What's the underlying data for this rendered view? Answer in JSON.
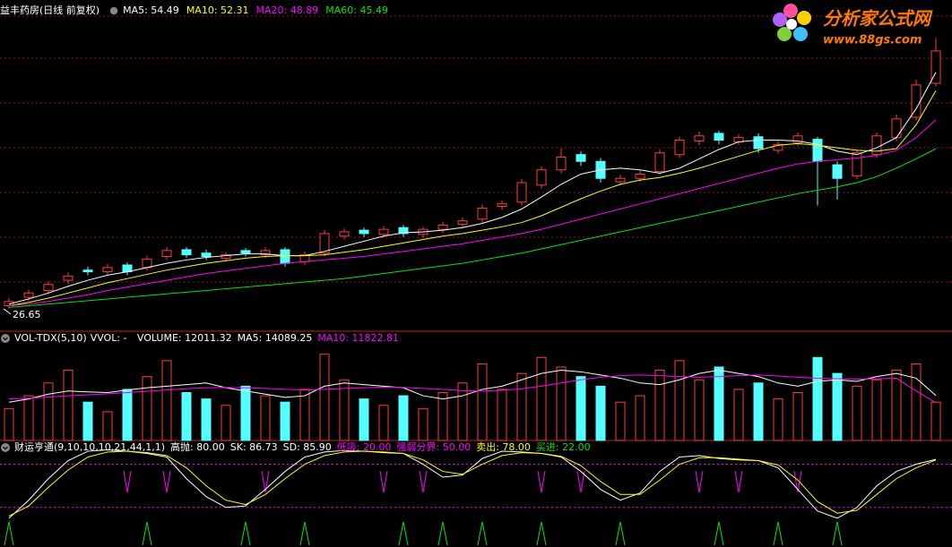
{
  "chart_data": [
    {
      "type": "candlestick",
      "title": "益丰药房(日线 前复权)",
      "up_color": "#ff3c3c",
      "down_color": "#54ffff",
      "ylim": [
        24,
        63
      ],
      "open": [
        27.0,
        28.0,
        28.8,
        30.0,
        31.2,
        31.0,
        31.8,
        31.5,
        32.8,
        33.6,
        33.2,
        32.6,
        33.5,
        33.0,
        33.6,
        32.2,
        33.2,
        35.2,
        35.9,
        35.4,
        36.2,
        35.4,
        36.0,
        36.6,
        37.2,
        38.7,
        39.2,
        41.2,
        43.0,
        44.8,
        44.0,
        41.6,
        42.0,
        42.8,
        44.8,
        46.4,
        47.3,
        46.3,
        46.9,
        45.3,
        46.2,
        46.6,
        43.6,
        42.3,
        44.8,
        46.8,
        49.2,
        53.2
      ],
      "high": [
        27.9,
        28.9,
        29.9,
        30.9,
        31.6,
        31.9,
        32.1,
        32.9,
        33.9,
        33.9,
        33.6,
        33.3,
        33.8,
        33.9,
        33.9,
        33.4,
        35.9,
        36.1,
        36.2,
        36.4,
        36.5,
        36.3,
        36.9,
        37.4,
        38.9,
        39.4,
        41.9,
        43.4,
        45.5,
        45.2,
        44.4,
        42.4,
        42.9,
        45.4,
        46.9,
        47.5,
        47.6,
        47.2,
        47.3,
        46.4,
        47.4,
        46.9,
        44.0,
        45.4,
        47.4,
        49.5,
        53.6,
        58.5
      ],
      "low": [
        26.65,
        27.6,
        28.4,
        29.6,
        30.6,
        30.6,
        30.6,
        31.1,
        32.4,
        32.6,
        32.4,
        32.2,
        32.8,
        32.6,
        31.6,
        31.8,
        32.8,
        34.8,
        35.1,
        35.0,
        35.1,
        35.0,
        35.6,
        36.2,
        36.8,
        38.3,
        38.8,
        40.8,
        42.6,
        43.5,
        41.5,
        41.2,
        41.6,
        42.4,
        44.4,
        45.9,
        46.0,
        45.9,
        45.0,
        44.9,
        45.8,
        38.8,
        39.5,
        41.9,
        44.4,
        46.4,
        48.8,
        52.8
      ],
      "close": [
        27.5,
        28.5,
        29.5,
        30.5,
        31.0,
        31.5,
        31.0,
        32.5,
        33.5,
        33.0,
        32.8,
        33.0,
        33.2,
        33.5,
        32.0,
        33.0,
        35.5,
        35.7,
        35.5,
        36.0,
        35.5,
        36.0,
        36.5,
        37.0,
        38.5,
        39.0,
        41.5,
        43.0,
        44.5,
        44.0,
        42.0,
        42.0,
        42.5,
        45.0,
        46.5,
        47.0,
        46.5,
        46.8,
        45.5,
        46.0,
        47.0,
        44.0,
        42.0,
        45.0,
        47.0,
        49.0,
        53.0,
        57.0
      ],
      "low_label": 26.65,
      "series": [
        {
          "name": "MA5: 54.49",
          "color": "#ffffff",
          "values": [
            27.2,
            27.8,
            28.5,
            29.3,
            30,
            30.6,
            31,
            31.5,
            32,
            32.4,
            32.7,
            32.9,
            33.1,
            33.1,
            32.9,
            32.9,
            33.4,
            34,
            34.6,
            35.2,
            35.6,
            35.7,
            35.9,
            36.2,
            36.7,
            37.4,
            38.4,
            39.8,
            41.3,
            42.5,
            43,
            43.2,
            43,
            42.6,
            43.2,
            44.3,
            45.4,
            46.3,
            46.5,
            46.5,
            46.4,
            46,
            45.2,
            44.8,
            45.6,
            46.8,
            50.2,
            54.49
          ]
        },
        {
          "name": "MA10: 52.31",
          "color": "#ffff00",
          "values": [
            27,
            27.4,
            27.9,
            28.5,
            29.1,
            29.7,
            30.2,
            30.7,
            31.2,
            31.6,
            32,
            32.3,
            32.6,
            32.8,
            32.9,
            32.9,
            33,
            33.3,
            33.6,
            34,
            34.4,
            34.8,
            35.2,
            35.5,
            35.9,
            36.3,
            36.8,
            37.6,
            38.6,
            39.6,
            40.5,
            41.3,
            41.8,
            42.1,
            42.6,
            43.2,
            43.9,
            44.6,
            45.3,
            45.9,
            46.1,
            45.9,
            45.6,
            45.3,
            45.2,
            45.5,
            48.3,
            52.31
          ]
        },
        {
          "name": "MA20: 48.89",
          "color": "#ff00ff",
          "values": [
            27,
            27.2,
            27.5,
            27.9,
            28.3,
            28.8,
            29.2,
            29.6,
            30,
            30.4,
            30.8,
            31.1,
            31.4,
            31.7,
            32,
            32.2,
            32.4,
            32.6,
            32.8,
            33.1,
            33.4,
            33.7,
            34,
            34.3,
            34.7,
            35.1,
            35.5,
            36,
            36.6,
            37.2,
            37.8,
            38.4,
            39,
            39.6,
            40.2,
            40.8,
            41.4,
            42,
            42.6,
            43.2,
            43.7,
            44,
            44.2,
            44.4,
            44.7,
            45.3,
            46.8,
            48.89
          ]
        },
        {
          "name": "MA60: 45.49",
          "color": "#00e600",
          "values": [
            26.8,
            27,
            27.2,
            27.4,
            27.6,
            27.8,
            28,
            28.2,
            28.4,
            28.6,
            28.8,
            29,
            29.2,
            29.4,
            29.6,
            29.8,
            30,
            30.2,
            30.5,
            30.8,
            31.1,
            31.4,
            31.7,
            32,
            32.4,
            32.8,
            33.2,
            33.7,
            34.2,
            34.7,
            35.2,
            35.7,
            36.2,
            36.7,
            37.2,
            37.7,
            38.2,
            38.7,
            39.2,
            39.7,
            40.2,
            40.6,
            41,
            41.5,
            42.2,
            43.2,
            44.3,
            45.49
          ]
        }
      ]
    },
    {
      "type": "volume",
      "title": "VOL-TDX(5,10)",
      "subtitle": "VVOL: -",
      "volume_label": "VOLUME: 12011.32",
      "ylim": [
        0,
        30000
      ],
      "values": [
        10000,
        14000,
        18000,
        22000,
        12000,
        9000,
        16000,
        20000,
        25000,
        15000,
        13000,
        11000,
        17000,
        14000,
        12000,
        16000,
        27000,
        19000,
        13000,
        11000,
        14000,
        10000,
        15000,
        18000,
        24000,
        16000,
        21000,
        26000,
        23000,
        20000,
        17000,
        12000,
        14000,
        22000,
        25000,
        19000,
        23000,
        16000,
        18000,
        13000,
        15000,
        26000,
        21000,
        17000,
        19000,
        22000,
        24000,
        12011.32
      ],
      "series": [
        {
          "name": "MA5: 14089.25",
          "color": "#ffffff",
          "values": [
            12000,
            13000,
            14500,
            15500,
            15200,
            15000,
            15800,
            16500,
            17000,
            17500,
            18000,
            16500,
            15500,
            14500,
            13500,
            14000,
            17000,
            18000,
            17500,
            17000,
            16500,
            14000,
            13000,
            14000,
            16000,
            17000,
            19000,
            21000,
            22000,
            21500,
            20500,
            19500,
            18000,
            17500,
            19000,
            21000,
            22000,
            21000,
            20000,
            18000,
            17000,
            18500,
            19000,
            18500,
            20000,
            21000,
            19500,
            14089.25
          ]
        },
        {
          "name": "MA10: 11822.81",
          "color": "#ff00ff",
          "values": [
            13000,
            13200,
            13600,
            14000,
            14300,
            14600,
            15000,
            15400,
            15800,
            16200,
            16500,
            16600,
            16500,
            16300,
            16000,
            15800,
            16000,
            16300,
            16500,
            16700,
            16600,
            16300,
            16000,
            15600,
            15500,
            15700,
            16200,
            17000,
            18000,
            19000,
            19800,
            20300,
            20500,
            20300,
            20000,
            19800,
            20000,
            20300,
            20500,
            20200,
            19800,
            19500,
            19300,
            19200,
            19300,
            19500,
            15500,
            11822.81
          ]
        }
      ]
    },
    {
      "type": "oscillator",
      "title": "财运亨通(9,10,10,10,21,44,1,1)",
      "ylim": [
        -35,
        113
      ],
      "legend": [
        {
          "label": "高抛: 80.00",
          "color": "#ffffff"
        },
        {
          "label": "SK: 86.73",
          "color": "#ffffff"
        },
        {
          "label": "SD: 85.90",
          "color": "#ffffff"
        },
        {
          "label": "低吸: 20.00",
          "color": "#ff00ff"
        },
        {
          "label": "强弱分界: 50.00",
          "color": "#ff00ff"
        },
        {
          "label": "卖出: 78.00",
          "color": "#ffff00"
        },
        {
          "label": "买进: 22.00",
          "color": "#00e600"
        }
      ],
      "reference_lines": [
        80,
        20
      ],
      "reference_color": "#ff00ff",
      "series": [
        {
          "color": "#ffffff",
          "values": [
            5,
            30,
            60,
            85,
            98,
            100,
            98,
            95,
            90,
            60,
            35,
            20,
            22,
            45,
            70,
            90,
            97,
            99,
            98,
            96,
            95,
            80,
            62,
            65,
            88,
            98,
            97,
            95,
            90,
            70,
            45,
            30,
            40,
            70,
            90,
            92,
            88,
            86,
            85,
            75,
            45,
            15,
            5,
            20,
            50,
            70,
            80,
            86.73
          ]
        },
        {
          "color": "#ffff00",
          "values": [
            8,
            22,
            48,
            72,
            90,
            97,
            98,
            96,
            92,
            75,
            50,
            30,
            24,
            38,
            60,
            80,
            92,
            97,
            98,
            97,
            95,
            86,
            70,
            66,
            80,
            92,
            96,
            95,
            91,
            78,
            56,
            38,
            38,
            58,
            80,
            89,
            89,
            87,
            85,
            79,
            58,
            28,
            12,
            16,
            38,
            60,
            75,
            85.9
          ]
        }
      ],
      "sell_signals": [
        6,
        8,
        13,
        19,
        21,
        27,
        29,
        35,
        37,
        40
      ],
      "sell_color": "#ff00ff",
      "buy_signals": [
        0,
        7,
        12,
        15,
        20,
        22,
        24,
        27,
        31,
        36,
        39,
        42
      ],
      "buy_color": "#00e600"
    }
  ],
  "watermark": {
    "name": "分析家公式网",
    "url": "www.88gs.com"
  }
}
